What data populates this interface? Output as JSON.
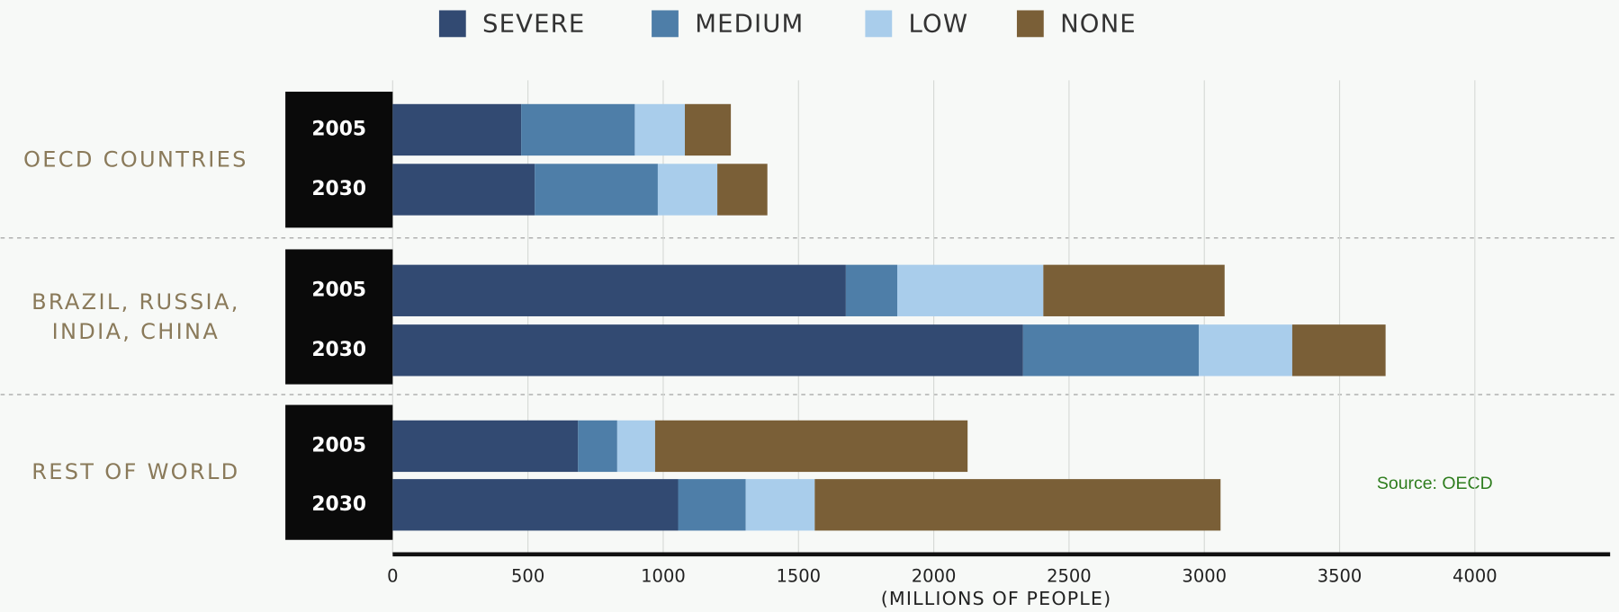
{
  "chart_data": {
    "type": "stacked-barh",
    "groups": [
      "OECD COUNTRIES",
      "BRAZIL, RUSSIA, INDIA, CHINA",
      "REST OF WORLD"
    ],
    "categories": [
      "2005",
      "2030",
      "2005",
      "2030",
      "2005",
      "2030"
    ],
    "series": [
      {
        "name": "SEVERE",
        "color": "#324a72",
        "values": [
          475,
          525,
          1675,
          2330,
          685,
          1055
        ]
      },
      {
        "name": "MEDIUM",
        "color": "#4e7ea8",
        "values": [
          420,
          455,
          190,
          650,
          145,
          250
        ]
      },
      {
        "name": "LOW",
        "color": "#a9cdeb",
        "values": [
          185,
          220,
          540,
          345,
          140,
          255
        ]
      },
      {
        "name": "NONE",
        "color": "#7a5f37",
        "values": [
          170,
          185,
          670,
          345,
          1155,
          1500
        ]
      }
    ],
    "xlabel": "(MILLIONS OF PEOPLE)",
    "xlim": [
      0,
      4500
    ],
    "xticks": [
      0,
      500,
      1000,
      1500,
      2000,
      2500,
      3000,
      3500,
      4000
    ],
    "grid": true,
    "legend": "top",
    "annotation": "Source: OECD"
  }
}
